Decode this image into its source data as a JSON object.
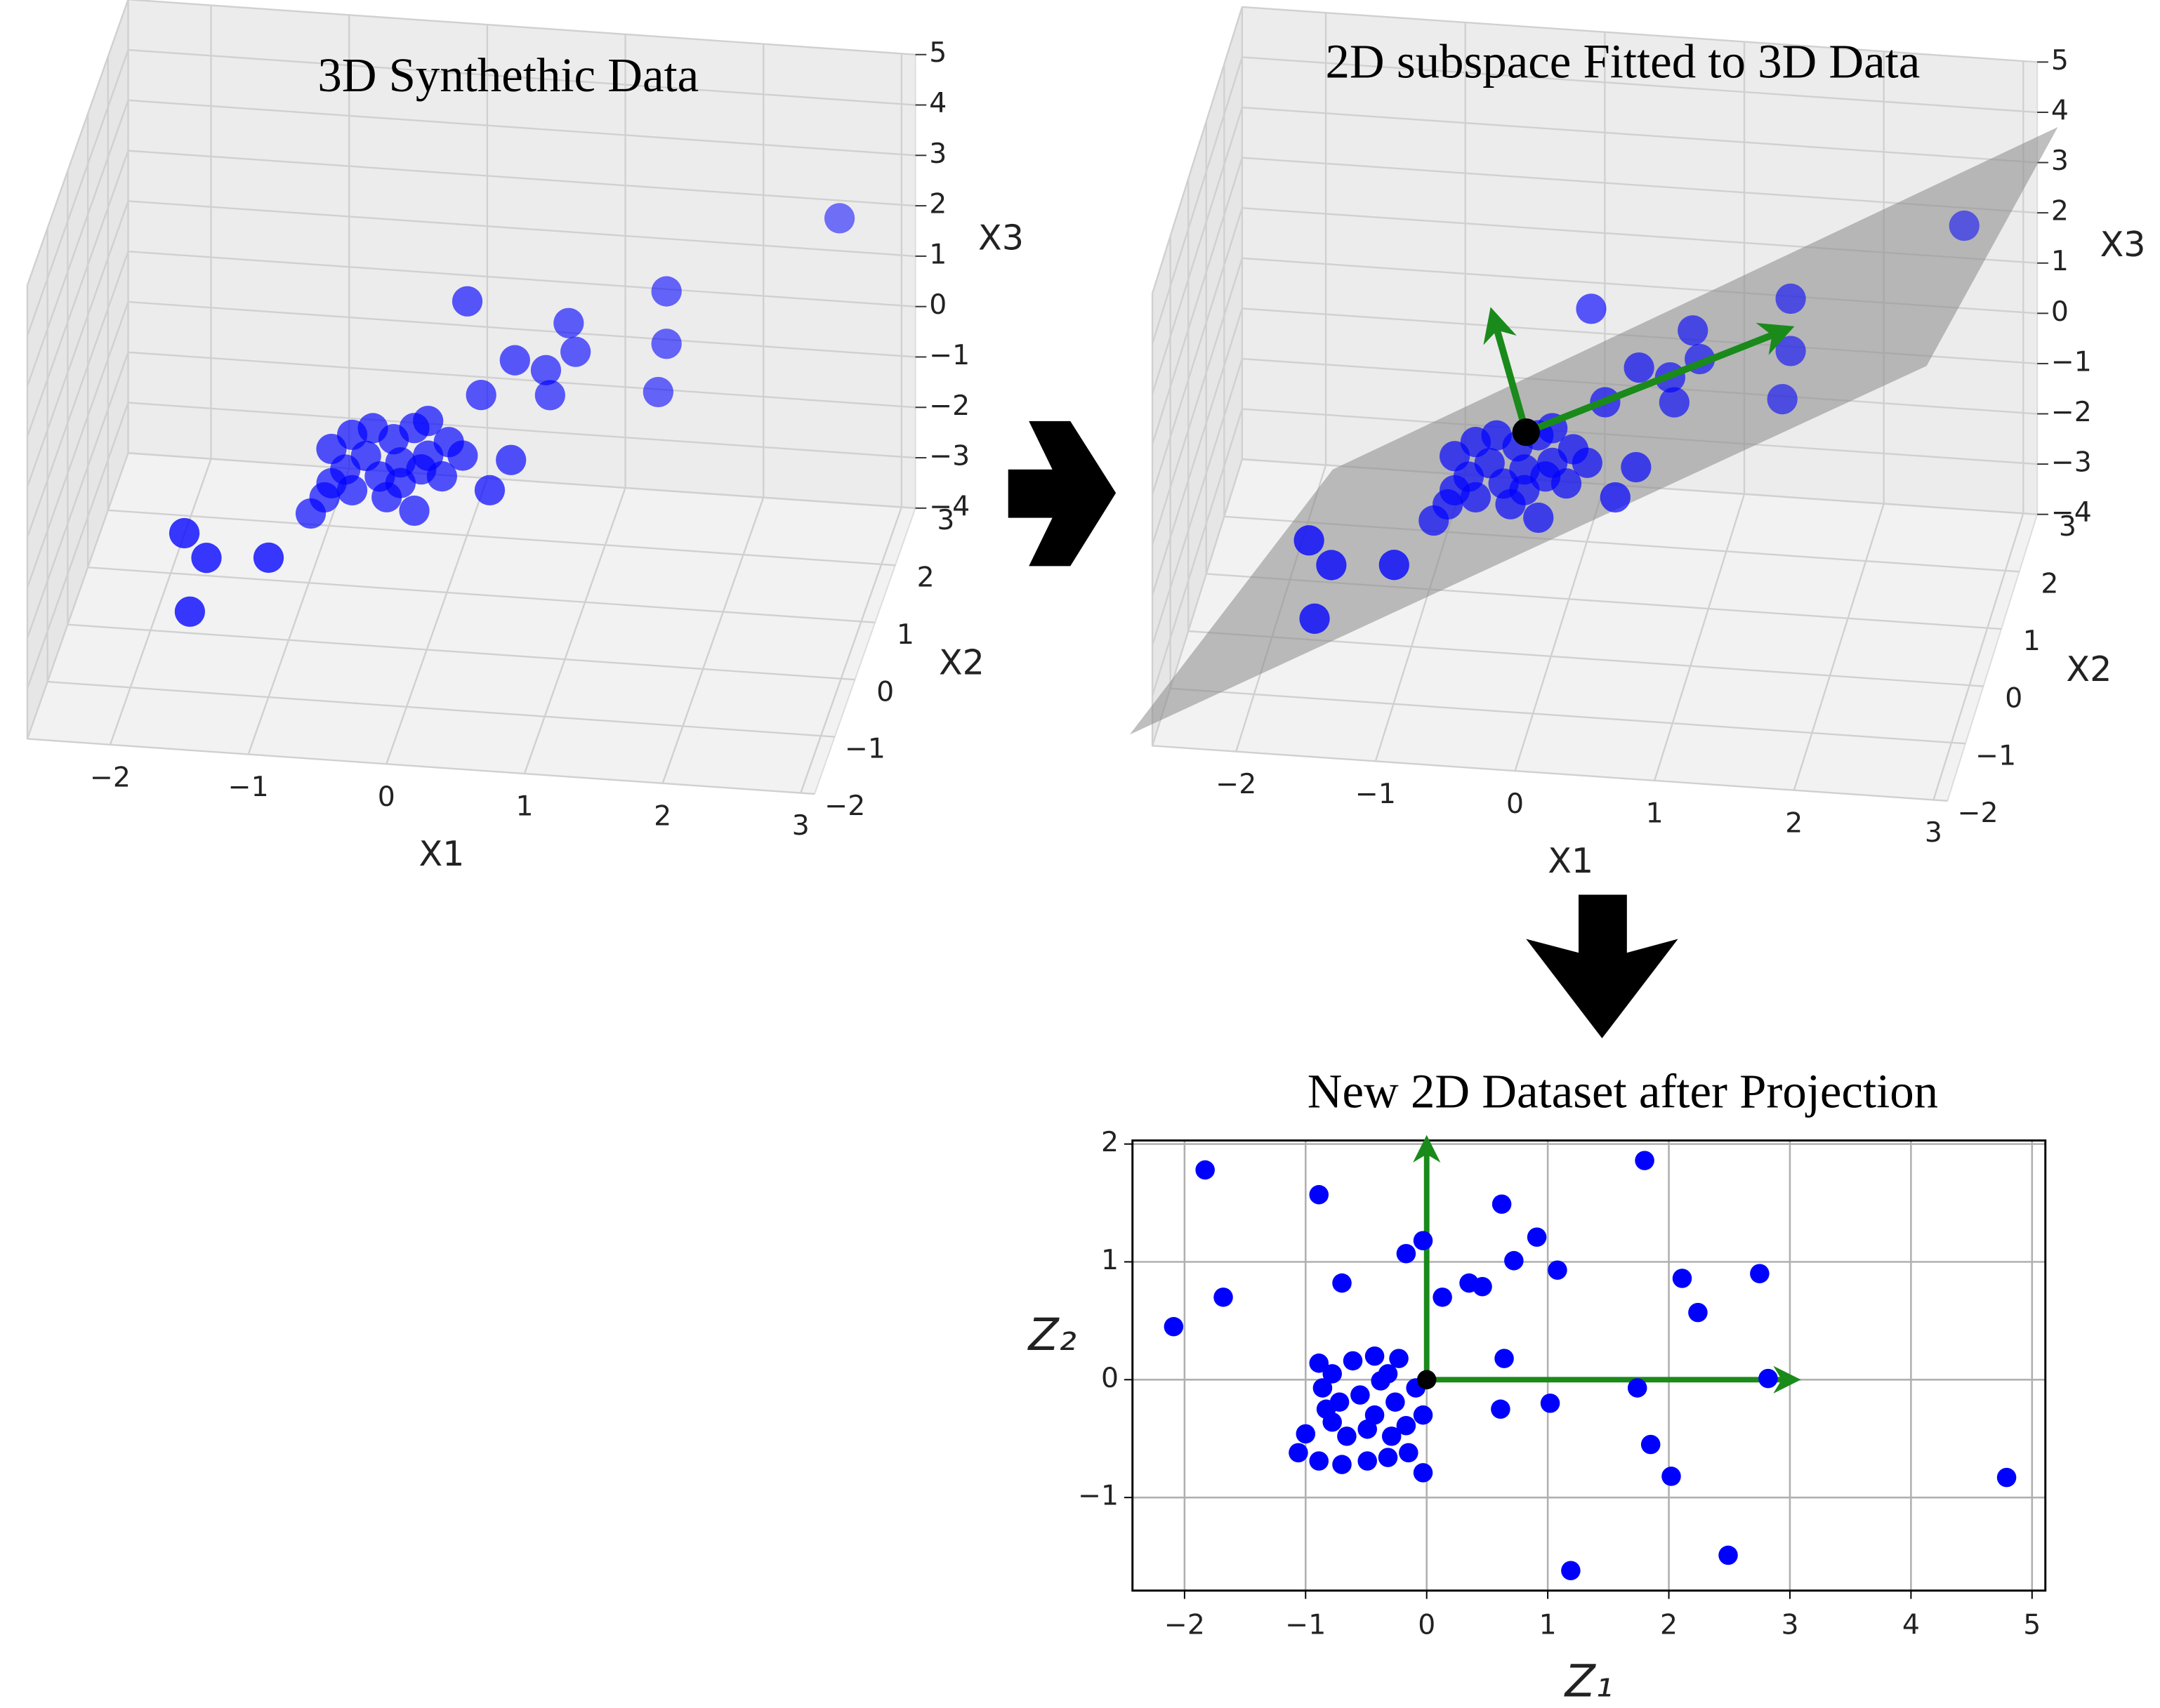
{
  "chart_data": [
    {
      "type": "scatter3d",
      "title": "3D Synthethic Data",
      "xlabel": "X1",
      "ylabel": "X2",
      "zlabel": "X3",
      "xlim": [
        -2.6,
        3.1
      ],
      "ylim": [
        -2,
        3
      ],
      "zlim": [
        -4,
        5
      ],
      "xticks": [
        {
          "value": -2,
          "label": "−2"
        },
        {
          "value": -1,
          "label": "−1"
        },
        0,
        1,
        2,
        3
      ],
      "yticks": [
        {
          "value": -2,
          "label": "−2"
        },
        {
          "value": -1,
          "label": "−1"
        },
        0,
        1,
        2,
        3
      ],
      "zticks": [
        {
          "value": -4,
          "label": "−4"
        },
        {
          "value": -3,
          "label": "−3"
        },
        {
          "value": -2,
          "label": "−2"
        },
        {
          "value": -1,
          "label": "−1"
        },
        0,
        1,
        2,
        3,
        4,
        5
      ],
      "color": "#0000ff",
      "x": [
        2.77,
        1.59,
        1.59,
        1.53,
        0.94,
        0.99,
        0.79,
        0.82,
        0.58,
        0.25,
        0.35,
        0.61,
        0.5,
        -0.69,
        -0.54,
        -0.39,
        -0.24,
        -0.09,
        0.01,
        0.16,
        -0.69,
        -0.54,
        -0.34,
        -0.19,
        -0.04,
        0.11,
        -0.44,
        -0.59,
        -0.29,
        -0.09,
        -0.84,
        0.26,
        0.01,
        -0.74,
        -0.19,
        -1.58,
        -1.42,
        -0.97,
        -1.54
      ],
      "y": [
        1.5,
        1,
        1,
        1,
        0.6,
        0.6,
        0.5,
        0.5,
        0.4,
        0.3,
        0.3,
        0,
        -0.3,
        0,
        0,
        0,
        0,
        0,
        0,
        0,
        0,
        0,
        0,
        0,
        0,
        0,
        0,
        0,
        0,
        0,
        0,
        0,
        0,
        0,
        0,
        -1.2,
        -1.2,
        -1.2,
        -1.2
      ],
      "z": [
        3.39,
        2.28,
        1.24,
        0.27,
        1.98,
        1.42,
        1.13,
        0.64,
        1.4,
        2.62,
        0.78,
        -0.12,
        -0.4,
        -0.15,
        0.16,
        0.32,
        0.13,
        0.38,
        -0.15,
        0.15,
        -0.83,
        -0.94,
        -0.63,
        -0.73,
        -0.43,
        -0.54,
        -0.24,
        -0.54,
        -1.03,
        -1.26,
        -1.46,
        -0.1,
        0.54,
        -1.12,
        -0.32,
        -0.63,
        -1.09,
        -1.0,
        -2.18
      ]
    },
    {
      "type": "scatter3d",
      "title": "2D subspace Fitted to 3D Data",
      "xlabel": "X1",
      "ylabel": "X2",
      "zlabel": "X3",
      "xlim": [
        -2.6,
        3.1
      ],
      "ylim": [
        -2,
        3
      ],
      "zlim": [
        -4,
        5
      ],
      "xticks": [
        {
          "value": -2,
          "label": "−2"
        },
        {
          "value": -1,
          "label": "−1"
        },
        0,
        1,
        2,
        3
      ],
      "yticks": [
        {
          "value": -2,
          "label": "−2"
        },
        {
          "value": -1,
          "label": "−1"
        },
        0,
        1,
        2,
        3
      ],
      "zticks": [
        {
          "value": -4,
          "label": "−4"
        },
        {
          "value": -3,
          "label": "−3"
        },
        {
          "value": -2,
          "label": "−2"
        },
        {
          "value": -1,
          "label": "−1"
        },
        0,
        1,
        2,
        3,
        4,
        5
      ],
      "color": "#0000ff",
      "x": [
        2.77,
        1.59,
        1.59,
        1.53,
        0.94,
        0.99,
        0.79,
        0.82,
        0.58,
        0.25,
        0.35,
        0.61,
        0.5,
        -0.69,
        -0.54,
        -0.39,
        -0.24,
        -0.09,
        0.01,
        0.16,
        -0.69,
        -0.54,
        -0.34,
        -0.19,
        -0.04,
        0.11,
        -0.44,
        -0.59,
        -0.29,
        -0.09,
        -0.84,
        0.26,
        0.01,
        -0.74,
        -0.19,
        -1.58,
        -1.42,
        -0.97,
        -1.54
      ],
      "y": [
        1.5,
        1,
        1,
        1,
        0.6,
        0.6,
        0.5,
        0.5,
        0.4,
        0.3,
        0.3,
        0,
        -0.3,
        0,
        0,
        0,
        0,
        0,
        0,
        0,
        0,
        0,
        0,
        0,
        0,
        0,
        0,
        0,
        0,
        0,
        0,
        0,
        0,
        0,
        0,
        -1.2,
        -1.2,
        -1.2,
        -1.2
      ],
      "z": [
        3.39,
        2.28,
        1.24,
        0.27,
        1.98,
        1.42,
        1.13,
        0.64,
        1.4,
        2.62,
        0.78,
        -0.12,
        -0.4,
        -0.15,
        0.16,
        0.32,
        0.13,
        0.38,
        -0.15,
        0.15,
        -0.83,
        -0.94,
        -0.63,
        -0.73,
        -0.43,
        -0.54,
        -0.24,
        -0.54,
        -1.03,
        -1.26,
        -1.46,
        -0.1,
        0.54,
        -1.12,
        -0.32,
        -0.63,
        -1.09,
        -1.0,
        -2.18
      ]
    },
    {
      "type": "scatter",
      "title": "New 2D Dataset after Projection",
      "xlabel": "Z₁",
      "ylabel": "Z₂",
      "xlim": [
        -2.43,
        5.11
      ],
      "ylim": [
        -1.79,
        2.03
      ],
      "xticks": [
        {
          "value": -2,
          "label": "−2"
        },
        {
          "value": -1,
          "label": "−1"
        },
        0,
        1,
        2,
        3,
        4,
        5
      ],
      "yticks": [
        {
          "value": -1,
          "label": "−1"
        },
        0,
        1,
        2
      ],
      "grid": true,
      "color": "#0000ff",
      "x": [
        -1.83,
        -0.89,
        -1.68,
        -2.09,
        -0.03,
        -0.17,
        0.13,
        -0.7,
        0.62,
        0.91,
        0.72,
        1.08,
        0.35,
        0.46,
        1.8,
        2.11,
        2.24,
        2.75,
        0.64,
        0.61,
        1.02,
        1.74,
        2.82,
        1.85,
        2.02,
        2.49,
        1.19,
        4.79,
        -0.89,
        -0.78,
        -0.86,
        -0.72,
        -0.61,
        -0.43,
        -0.23,
        -0.32,
        -0.09,
        -0.03,
        -0.83,
        -0.55,
        -0.43,
        -0.26,
        -1.0,
        -1.06,
        -0.89,
        -0.7,
        -0.49,
        -0.32,
        -0.15,
        -0.03,
        -0.66,
        -0.49,
        -0.29,
        -0.17,
        -0.38,
        -0.78
      ],
      "y": [
        1.78,
        1.57,
        0.7,
        0.45,
        1.18,
        1.07,
        0.7,
        0.82,
        1.49,
        1.21,
        1.01,
        0.93,
        0.82,
        0.79,
        1.86,
        0.86,
        0.57,
        0.9,
        0.18,
        -0.25,
        -0.2,
        -0.07,
        0.01,
        -0.55,
        -0.82,
        -1.49,
        -1.62,
        -0.83,
        0.14,
        0.05,
        -0.07,
        -0.19,
        0.16,
        0.2,
        0.18,
        0.05,
        -0.07,
        -0.3,
        -0.25,
        -0.13,
        -0.3,
        -0.19,
        -0.46,
        -0.62,
        -0.69,
        -0.72,
        -0.69,
        -0.66,
        -0.62,
        -0.79,
        -0.48,
        -0.42,
        -0.48,
        -0.39,
        -0.01,
        -0.36
      ]
    }
  ]
}
